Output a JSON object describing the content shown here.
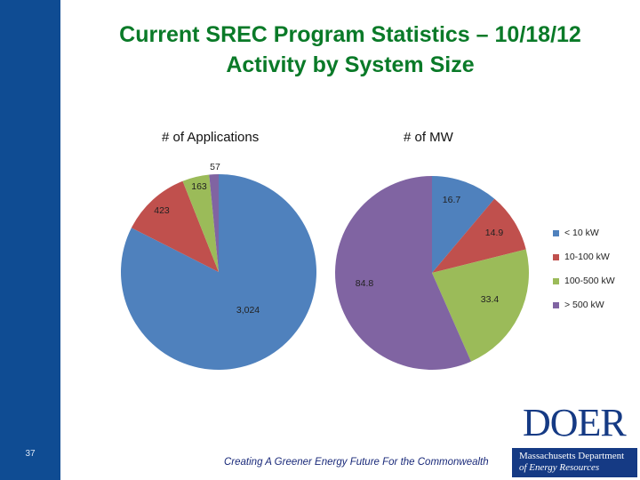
{
  "slide": {
    "title_line1": "Current SREC Program Statistics – 10/18/12",
    "title_line2": "Activity by System Size",
    "slide_number": "37",
    "footer": "Creating A Greener Energy Future For the Commonwealth",
    "logo": {
      "word": "DOER",
      "line1": "Massachusetts Department",
      "line2": "of Energy Resources"
    },
    "colors": {
      "band": "#0f4c93",
      "title": "#0a7a28"
    }
  },
  "chart_data": [
    {
      "type": "pie",
      "title": "# of Applications",
      "categories": [
        "< 10 kW",
        "10-100 kW",
        "100-500 kW",
        "> 500 kW"
      ],
      "values": [
        3024,
        423,
        163,
        57
      ],
      "labels": [
        "3,024",
        "423",
        "163",
        "57"
      ],
      "colors": [
        "#4f81bd",
        "#c0504d",
        "#9bbb59",
        "#8064a2"
      ]
    },
    {
      "type": "pie",
      "title": "# of MW",
      "categories": [
        "< 10 kW",
        "10-100 kW",
        "100-500 kW",
        "> 500 kW"
      ],
      "values": [
        16.7,
        14.9,
        33.4,
        84.8
      ],
      "labels": [
        "16.7",
        "14.9",
        "33.4",
        "84.8"
      ],
      "colors": [
        "#4f81bd",
        "#c0504d",
        "#9bbb59",
        "#8064a2"
      ]
    }
  ],
  "legend": {
    "position": "right",
    "items": [
      {
        "label": "< 10 kW",
        "color": "#4f81bd"
      },
      {
        "label": "10-100 kW",
        "color": "#c0504d"
      },
      {
        "label": "100-500 kW",
        "color": "#9bbb59"
      },
      {
        "label": "> 500 kW",
        "color": "#8064a2"
      }
    ]
  }
}
